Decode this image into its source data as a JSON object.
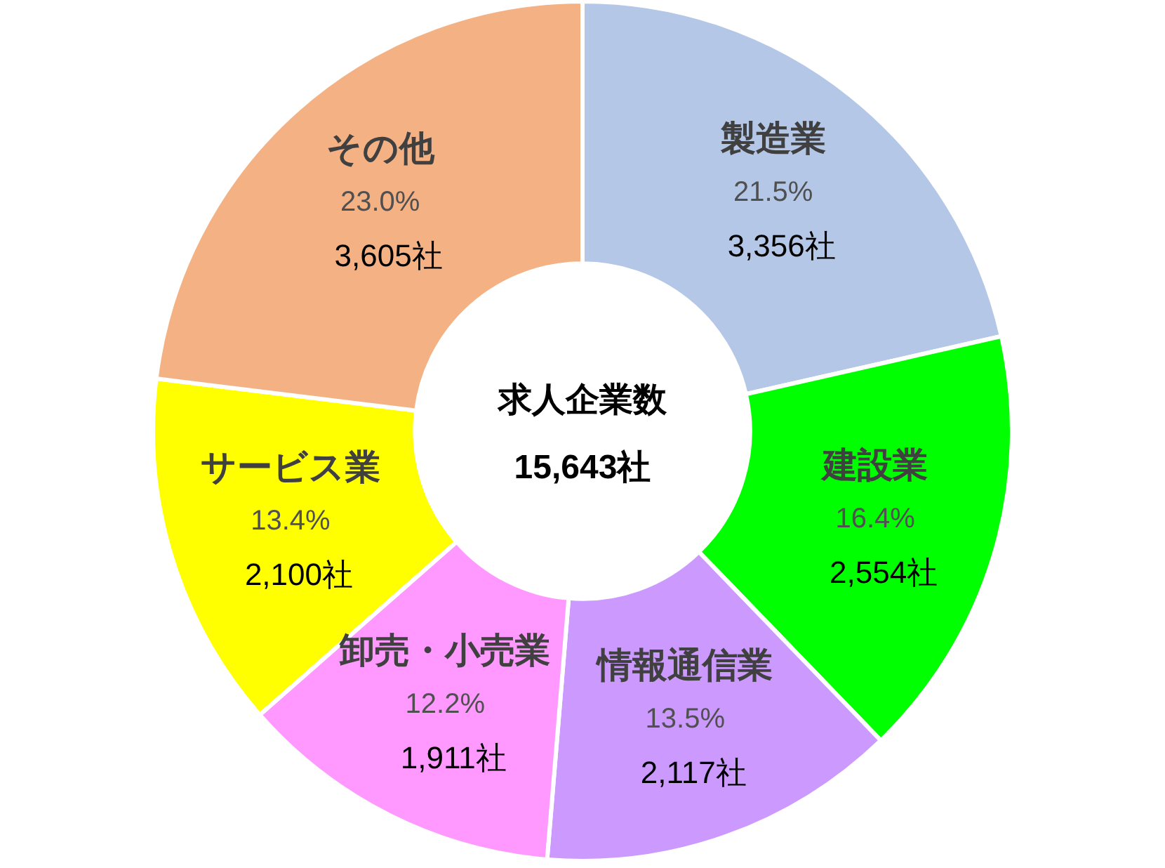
{
  "chart_data": {
    "type": "donut",
    "title": "求人企業数",
    "subtitle": "15,643社",
    "categories": [
      "製造業",
      "建設業",
      "情報通信業",
      "卸売・小売業",
      "サービス業",
      "その他"
    ],
    "values": [
      3356,
      2554,
      2117,
      1911,
      2100,
      3605
    ],
    "colors": [
      "#b4c7e7",
      "#00ff00",
      "#cc99ff",
      "#ff99ff",
      "#ffff00",
      "#f4b183"
    ],
    "value_labels": [
      "3,356社",
      "2,554社",
      "2,117社",
      "1,911社",
      "2,100社",
      "3,605社"
    ],
    "annotations": [
      {
        "text": "21.5%",
        "x": "製造業"
      },
      {
        "text": "16.4%",
        "x": "建設業"
      },
      {
        "text": "13.5%",
        "x": "情報通信業"
      },
      {
        "text": "12.2%",
        "x": "卸売・小売業"
      },
      {
        "text": "13.4%",
        "x": "サービス業"
      },
      {
        "text": "23.0%",
        "x": "その他"
      }
    ]
  }
}
